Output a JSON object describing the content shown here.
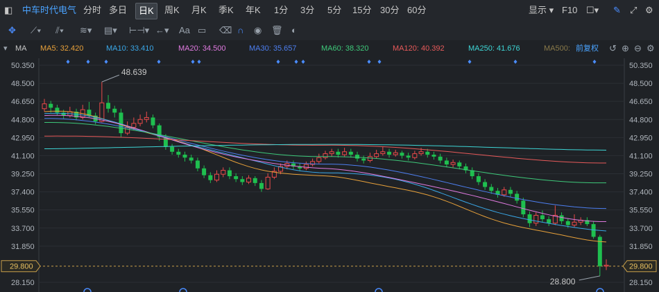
{
  "toolbar": {
    "stock_name": "中车时代电气",
    "periods": [
      "分时",
      "多日",
      "日K",
      "周K",
      "月K",
      "季K",
      "年K",
      "1分",
      "3分",
      "5分",
      "15分",
      "30分",
      "60分"
    ],
    "active_period": "日K",
    "display_label": "显示",
    "f10_label": "F10"
  },
  "drawtools": {
    "text_tool_label": "Aa"
  },
  "ma_legend": {
    "indicator_label": "MA",
    "items": [
      {
        "label": "MA5: 32.420",
        "color": "#e8a13a"
      },
      {
        "label": "MA10: 33.410",
        "color": "#3aa8e8"
      },
      {
        "label": "MA20: 34.500",
        "color": "#e07ae0"
      },
      {
        "label": "MA30: 35.657",
        "color": "#4d7ff0"
      },
      {
        "label": "MA60: 38.320",
        "color": "#3ec97a"
      },
      {
        "label": "MA120: 40.392",
        "color": "#e85a5a"
      },
      {
        "label": "MA250: 41.676",
        "color": "#3ed6d6"
      },
      {
        "label": "MA500:",
        "color": "#8a7a4a"
      }
    ],
    "adjust_label": "前复权"
  },
  "chart_data": {
    "type": "candlestick",
    "ylim": [
      28.15,
      50.35
    ],
    "ticks": [
      "50.350",
      "48.500",
      "46.650",
      "44.800",
      "42.950",
      "41.100",
      "39.250",
      "37.400",
      "35.550",
      "33.700",
      "31.850",
      "29.800",
      "28.150"
    ],
    "current_price_label": "29.800",
    "current_price": 29.8,
    "high_annotation": "48.639",
    "high_value": 48.639,
    "low_annotation": "28.800",
    "low_value": 28.8,
    "candles": [
      [
        45.9,
        46.4,
        46.9,
        45.6
      ],
      [
        46.4,
        46.0,
        46.7,
        45.5
      ],
      [
        46.0,
        45.5,
        46.3,
        45.2
      ],
      [
        45.5,
        45.2,
        45.8,
        44.9
      ],
      [
        45.2,
        45.6,
        46.1,
        45.0
      ],
      [
        45.6,
        45.0,
        45.9,
        44.7
      ],
      [
        45.0,
        45.8,
        46.3,
        44.8
      ],
      [
        45.8,
        45.2,
        46.6,
        45.0
      ],
      [
        45.2,
        44.6,
        45.5,
        44.3
      ],
      [
        44.6,
        46.5,
        48.64,
        44.5
      ],
      [
        46.5,
        45.9,
        47.3,
        45.5
      ],
      [
        45.9,
        45.5,
        46.2,
        45.0
      ],
      [
        45.5,
        43.4,
        45.9,
        43.0
      ],
      [
        43.4,
        44.0,
        44.6,
        43.2
      ],
      [
        44.0,
        44.4,
        45.0,
        43.7
      ],
      [
        44.4,
        44.8,
        45.3,
        44.1
      ],
      [
        44.8,
        45.0,
        45.6,
        44.5
      ],
      [
        45.0,
        44.2,
        45.3,
        43.9
      ],
      [
        44.2,
        43.0,
        44.4,
        42.6
      ],
      [
        43.0,
        42.0,
        43.3,
        41.7
      ],
      [
        42.0,
        41.5,
        42.3,
        41.2
      ],
      [
        41.5,
        41.2,
        41.8,
        40.9
      ],
      [
        41.2,
        40.9,
        41.5,
        40.5
      ],
      [
        40.9,
        40.6,
        41.2,
        40.3
      ],
      [
        40.6,
        39.8,
        40.9,
        39.5
      ],
      [
        39.8,
        39.1,
        40.1,
        38.8
      ],
      [
        39.1,
        38.6,
        39.4,
        38.3
      ],
      [
        38.6,
        39.2,
        39.6,
        38.4
      ],
      [
        39.2,
        39.6,
        39.9,
        38.9
      ],
      [
        39.6,
        39.0,
        39.9,
        38.7
      ],
      [
        39.0,
        38.7,
        39.3,
        38.4
      ],
      [
        38.7,
        38.4,
        39.0,
        38.1
      ],
      [
        38.4,
        38.8,
        39.1,
        38.2
      ],
      [
        38.8,
        38.3,
        39.0,
        38.0
      ],
      [
        38.3,
        37.7,
        38.6,
        37.4
      ],
      [
        37.7,
        38.9,
        39.3,
        37.6
      ],
      [
        38.9,
        39.5,
        39.9,
        38.7
      ],
      [
        39.5,
        40.0,
        40.3,
        39.2
      ],
      [
        40.0,
        40.3,
        40.6,
        39.7
      ],
      [
        40.3,
        40.0,
        40.6,
        39.7
      ],
      [
        40.0,
        39.8,
        40.3,
        39.5
      ],
      [
        39.8,
        40.2,
        40.5,
        39.6
      ],
      [
        40.2,
        40.5,
        40.8,
        40.0
      ],
      [
        40.5,
        40.9,
        41.3,
        40.3
      ],
      [
        40.9,
        41.3,
        41.6,
        40.7
      ],
      [
        41.3,
        41.5,
        41.8,
        41.0
      ],
      [
        41.5,
        41.2,
        41.8,
        40.9
      ],
      [
        41.2,
        41.5,
        41.9,
        41.0
      ],
      [
        41.5,
        41.2,
        41.8,
        40.9
      ],
      [
        41.2,
        40.8,
        41.5,
        40.5
      ],
      [
        40.8,
        40.6,
        41.1,
        40.3
      ],
      [
        40.6,
        41.0,
        41.4,
        40.4
      ],
      [
        41.0,
        41.3,
        41.7,
        40.8
      ],
      [
        41.3,
        41.5,
        42.0,
        41.1
      ],
      [
        41.5,
        41.2,
        41.8,
        40.9
      ],
      [
        41.2,
        41.4,
        41.7,
        41.0
      ],
      [
        41.4,
        41.1,
        41.6,
        40.8
      ],
      [
        41.1,
        40.9,
        41.4,
        40.6
      ],
      [
        40.9,
        41.3,
        41.6,
        40.7
      ],
      [
        41.3,
        41.5,
        41.9,
        41.1
      ],
      [
        41.5,
        41.2,
        41.8,
        40.9
      ],
      [
        41.2,
        41.0,
        41.5,
        40.7
      ],
      [
        41.0,
        40.6,
        41.3,
        40.3
      ],
      [
        40.6,
        40.2,
        40.9,
        39.9
      ],
      [
        40.2,
        40.4,
        40.7,
        39.9
      ],
      [
        40.4,
        40.0,
        40.6,
        39.7
      ],
      [
        40.0,
        39.6,
        40.3,
        39.3
      ],
      [
        39.6,
        39.0,
        39.9,
        38.7
      ],
      [
        39.0,
        38.4,
        39.3,
        38.1
      ],
      [
        38.4,
        37.9,
        38.7,
        37.6
      ],
      [
        37.9,
        37.5,
        38.2,
        37.2
      ],
      [
        37.5,
        37.1,
        37.8,
        36.8
      ],
      [
        37.1,
        37.6,
        37.9,
        36.9
      ],
      [
        37.6,
        37.2,
        37.9,
        36.9
      ],
      [
        37.2,
        36.5,
        37.5,
        36.2
      ],
      [
        36.5,
        35.1,
        36.8,
        34.8
      ],
      [
        35.1,
        34.2,
        35.4,
        33.8
      ],
      [
        34.2,
        35.0,
        35.3,
        33.9
      ],
      [
        35.0,
        34.6,
        35.5,
        34.3
      ],
      [
        34.6,
        34.2,
        34.9,
        33.9
      ],
      [
        34.2,
        35.0,
        36.0,
        34.0
      ],
      [
        35.0,
        34.4,
        35.3,
        34.1
      ],
      [
        34.4,
        34.0,
        34.7,
        33.7
      ],
      [
        34.0,
        34.3,
        35.1,
        33.8
      ],
      [
        34.3,
        34.5,
        34.8,
        34.0
      ],
      [
        34.5,
        34.1,
        34.8,
        33.9
      ],
      [
        34.1,
        32.8,
        34.4,
        32.6
      ],
      [
        32.8,
        29.8,
        33.0,
        28.8
      ],
      [
        29.8,
        29.9,
        30.5,
        29.4
      ]
    ],
    "ma_series": [
      {
        "color": "#e8a13a",
        "start": 45.6,
        "mid": 38.9,
        "end": 32.4
      },
      {
        "color": "#3aa8e8",
        "start": 45.4,
        "mid": 39.5,
        "end": 33.4
      },
      {
        "color": "#e07ae0",
        "start": 45.2,
        "mid": 39.7,
        "end": 34.5
      },
      {
        "color": "#4d7ff0",
        "start": 44.9,
        "mid": 40.2,
        "end": 35.657
      },
      {
        "color": "#3ec97a",
        "start": 44.5,
        "mid": 41.0,
        "end": 38.32
      },
      {
        "color": "#e85a5a",
        "start": 43.1,
        "mid": 42.2,
        "end": 40.392
      },
      {
        "color": "#3ed6d6",
        "start": 41.8,
        "mid": 42.3,
        "end": 41.676
      }
    ]
  }
}
